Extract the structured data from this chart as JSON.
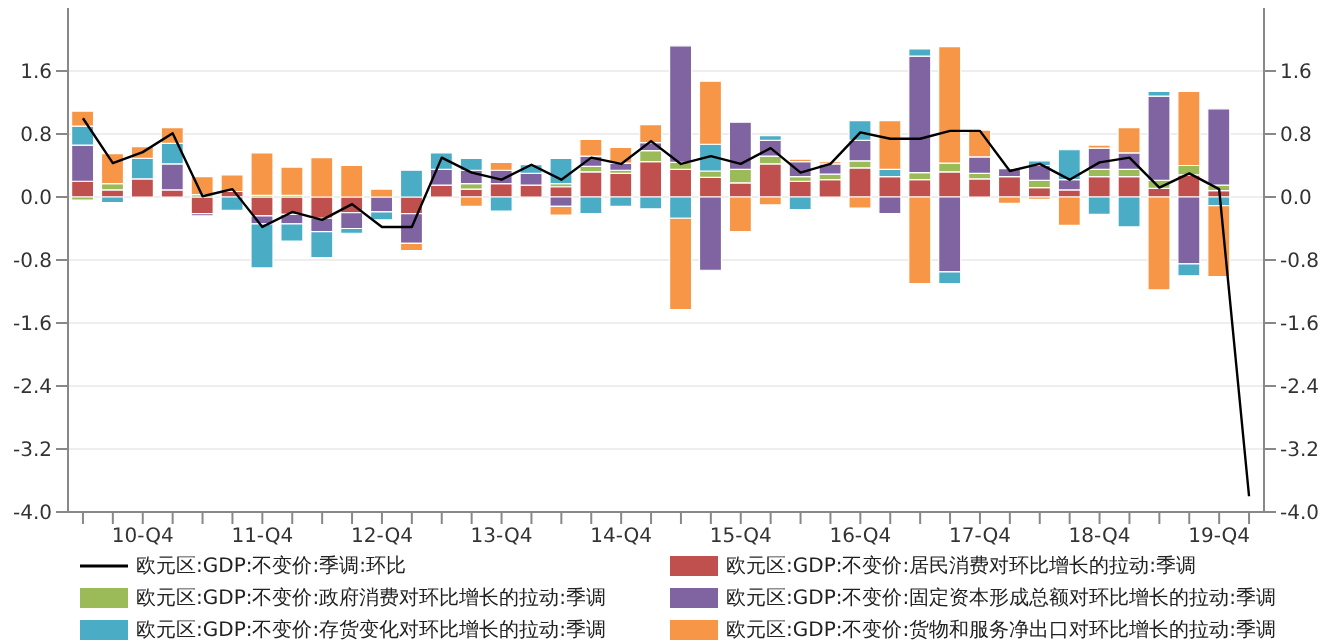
{
  "chart_data": {
    "type": "bar",
    "stacked": true,
    "categories": [
      null,
      null,
      "10-Q4",
      null,
      null,
      null,
      "11-Q4",
      null,
      null,
      null,
      "12-Q4",
      null,
      null,
      null,
      "13-Q4",
      null,
      null,
      null,
      "14-Q4",
      null,
      null,
      null,
      "15-Q4",
      null,
      null,
      null,
      "16-Q4",
      null,
      null,
      null,
      "17-Q4",
      null,
      null,
      null,
      "18-Q4",
      null,
      null,
      null,
      "19-Q4",
      null
    ],
    "series": [
      {
        "name": "欧元区:GDP:不变价:季调:环比",
        "type": "line",
        "color": "#000000",
        "values": [
          1.0,
          0.43,
          0.57,
          0.81,
          0.01,
          0.1,
          -0.38,
          -0.19,
          -0.29,
          -0.09,
          -0.38,
          -0.38,
          0.5,
          0.31,
          0.22,
          0.41,
          0.22,
          0.5,
          0.42,
          0.71,
          0.42,
          0.52,
          0.42,
          0.62,
          0.31,
          0.42,
          0.82,
          0.74,
          0.74,
          0.84,
          0.84,
          0.33,
          0.42,
          0.22,
          0.44,
          0.5,
          0.12,
          0.3,
          0.1,
          -3.8
        ]
      },
      {
        "name": "欧元区:GDP:不变价:居民消费对环比增长的拉动:季调",
        "color": "#c0504d",
        "values": [
          0.2,
          0.09,
          0.23,
          0.09,
          -0.21,
          0.07,
          -0.24,
          -0.22,
          -0.27,
          -0.2,
          0,
          -0.21,
          0.15,
          0.1,
          0.17,
          0.15,
          0.13,
          0.32,
          0.3,
          0.45,
          0.35,
          0.25,
          0.18,
          0.42,
          0.2,
          0.22,
          0.37,
          0.26,
          0.22,
          0.32,
          0.23,
          0.26,
          0.12,
          0.09,
          0.26,
          0.26,
          0.11,
          0.28,
          0.08,
          null
        ]
      },
      {
        "name": "欧元区:GDP:不变价:政府消费对环比增长的拉动:季调",
        "color": "#9bbb59",
        "values": [
          -0.04,
          0.08,
          0,
          0,
          0.03,
          0,
          0.02,
          0.02,
          0,
          0,
          0,
          0,
          0,
          0.07,
          0,
          0,
          0.04,
          0.07,
          0.04,
          0.14,
          0.09,
          0.08,
          0.17,
          0.1,
          0.06,
          0.07,
          0.09,
          0,
          0.09,
          0.11,
          0.07,
          0,
          0.09,
          0,
          0.09,
          0.09,
          0.1,
          0.12,
          0.07,
          null
        ]
      },
      {
        "name": "欧元区:GDP:不变价:固定资本形成总额对环比增长的拉动:季调",
        "color": "#8064a2",
        "values": [
          0.46,
          0,
          0,
          0.33,
          -0.03,
          0,
          -0.1,
          -0.12,
          -0.17,
          -0.2,
          -0.19,
          -0.38,
          0.2,
          0.17,
          0.17,
          0.15,
          -0.12,
          0.13,
          0.09,
          0.1,
          1.48,
          -0.93,
          0.6,
          0.2,
          0.19,
          0.13,
          0.26,
          -0.21,
          1.48,
          -0.95,
          0.21,
          0.1,
          0.19,
          0.13,
          0.27,
          0.21,
          1.07,
          -0.85,
          0.97,
          null
        ]
      },
      {
        "name": "欧元区:GDP:不变价:存货变化对环比增长的拉动:季调",
        "color": "#4bacc6",
        "values": [
          0.24,
          -0.07,
          0.26,
          0.26,
          0,
          -0.17,
          -0.56,
          -0.22,
          -0.33,
          -0.06,
          -0.1,
          0.34,
          0.21,
          0.15,
          -0.18,
          0.11,
          0.32,
          -0.21,
          -0.12,
          -0.15,
          -0.27,
          0.34,
          0,
          0.06,
          -0.16,
          0,
          0.25,
          0.09,
          0.09,
          -0.15,
          0,
          0,
          0.06,
          0.38,
          -0.22,
          -0.38,
          0.06,
          -0.15,
          -0.11,
          null
        ]
      },
      {
        "name": "欧元区:GDP:不变价:货物和服务净出口对环比增长的拉动:季调",
        "color": "#f79646",
        "values": [
          0.19,
          0.38,
          0.15,
          0.2,
          0.23,
          0.21,
          0.54,
          0.36,
          0.5,
          0.4,
          0.1,
          -0.09,
          0,
          -0.12,
          0.1,
          0,
          -0.11,
          0.21,
          0.2,
          0.23,
          -1.16,
          0.8,
          -0.44,
          -0.1,
          0.03,
          0.03,
          -0.14,
          0.62,
          -1.1,
          1.48,
          0.34,
          -0.08,
          -0.03,
          -0.36,
          0.04,
          0.32,
          -1.18,
          0.94,
          -0.9,
          null
        ]
      }
    ],
    "ylim": [
      -4,
      2.4
    ],
    "yticks": [
      {
        "value": -4,
        "label": "-4.0"
      },
      -3.2,
      -2.4,
      -1.6,
      -0.8,
      {
        "value": 0,
        "label": "0.0"
      },
      0.8,
      1.6
    ],
    "y2lim": [
      -4,
      2.4
    ],
    "y2ticks": [
      {
        "value": -4,
        "label": "-4.0"
      },
      -3.2,
      -2.4,
      -1.6,
      -0.8,
      {
        "value": 0,
        "label": "0.0"
      },
      0.8,
      1.6
    ],
    "grid": "y",
    "legend": "bottom"
  }
}
